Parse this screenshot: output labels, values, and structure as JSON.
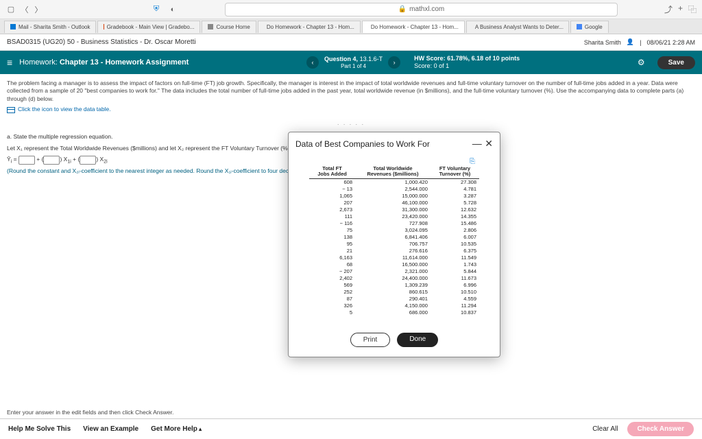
{
  "browser": {
    "url": "mathxl.com",
    "tabs": [
      {
        "label": "Mail - Sharita Smith - Outlook",
        "color": "#0078d4"
      },
      {
        "label": "Gradebook - Main View | Gradebo...",
        "color": "#d83b01"
      },
      {
        "label": "Course Home",
        "color": "#666"
      },
      {
        "label": "Do Homework - Chapter 13 - Hom...",
        "color": "#666"
      },
      {
        "label": "Do Homework - Chapter 13 - Hom...",
        "color": "#444"
      },
      {
        "label": "A Business Analyst Wants to Deter...",
        "color": "#d83b01"
      },
      {
        "label": "Google",
        "color": "#666"
      }
    ]
  },
  "course": {
    "title": "BSAD0315 (UG20) 50 - Business Statistics - Dr. Oscar Moretti",
    "user": "Sharita Smith",
    "datetime": "08/06/21 2:28 AM"
  },
  "assignment": {
    "label_prefix": "Homework:",
    "title": "Chapter 13 - Homework Assignment",
    "question_label": "Question 4,",
    "question_id": "13.1.6-T",
    "part": "Part 1 of 4",
    "hw_score": "HW Score: 61.78%, 6.18 of 10 points",
    "score": "Score: 0 of 1",
    "save": "Save"
  },
  "problem": {
    "text": "The problem facing a manager is to assess the impact of factors on full-time (FT) job growth. Specifically, the manager is interest in the impact of total worldwide revenues and full-time voluntary turnover on the number of full-time jobs added in a year. Data were collected from a sample of 20 \"best companies to work for.\" The data includes the total number of full-time jobs added in the past year, total worldwide revenue (in $millions), and the full-time voluntary turnover (%). Use the accompanying data to complete parts (a) through (d) below.",
    "link": "Click the icon to view the data table."
  },
  "question": {
    "a": "a. State the multiple regression equation.",
    "let": "Let X₁ represent the Total Worldwide Revenues ($millions) and let X₂ represent the FT Voluntary Turnover (%).",
    "round": "(Round the constant and X₂ᵢ-coefficient to the nearest integer as needed. Round the X₁ᵢ-coefficient to four decimal places as needed.)"
  },
  "modal": {
    "title": "Data of Best Companies to Work For",
    "headers": [
      "Total FT Jobs Added",
      "Total Worldwide Revenues ($millions)",
      "FT Voluntary Turnover (%)"
    ],
    "h1a": "Total FT",
    "h1b": "Jobs Added",
    "h2a": "Total Worldwide",
    "h2b": "Revenues ($millions)",
    "h3a": "FT Voluntary",
    "h3b": "Turnover (%)",
    "rows": [
      [
        "608",
        "1,000.420",
        "27.308"
      ],
      [
        "− 13",
        "2,544.000",
        "4.781"
      ],
      [
        "1,065",
        "15,000.000",
        "3.287"
      ],
      [
        "207",
        "46,100.000",
        "5.728"
      ],
      [
        "2,673",
        "31,300.000",
        "12.632"
      ],
      [
        "111",
        "23,420.000",
        "14.355"
      ],
      [
        "− 116",
        "727.908",
        "15.486"
      ],
      [
        "75",
        "3,024.095",
        "2.806"
      ],
      [
        "138",
        "6,841.406",
        "6.007"
      ],
      [
        "95",
        "706.757",
        "10.535"
      ],
      [
        "21",
        "276.616",
        "6.375"
      ],
      [
        "6,163",
        "11,614.000",
        "11.549"
      ],
      [
        "68",
        "16,500.000",
        "1.743"
      ],
      [
        "− 207",
        "2,321.000",
        "5.844"
      ],
      [
        "2,402",
        "24,400.000",
        "11.673"
      ],
      [
        "569",
        "1,309.239",
        "6.996"
      ],
      [
        "252",
        "860.615",
        "10.510"
      ],
      [
        "87",
        "290.401",
        "4.559"
      ],
      [
        "326",
        "4,150.000",
        "11.294"
      ],
      [
        "5",
        "686.000",
        "10.837"
      ]
    ],
    "print": "Print",
    "done": "Done"
  },
  "footer": {
    "hint": "Enter your answer in the edit fields and then click Check Answer.",
    "help": "Help Me Solve This",
    "example": "View an Example",
    "more": "Get More Help",
    "clear": "Clear All",
    "check": "Check Answer"
  }
}
